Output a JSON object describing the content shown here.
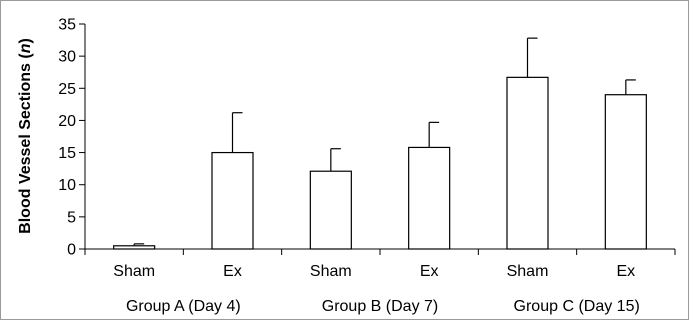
{
  "chart_data": {
    "type": "bar",
    "title": "",
    "xlabel": "",
    "ylabel": "Blood Vessel Sections",
    "ylabel_italic": "n",
    "ylim": [
      0,
      35
    ],
    "yticks": [
      0,
      5,
      10,
      15,
      20,
      25,
      30,
      35
    ],
    "grid": false,
    "legend": "none",
    "categories": [
      "Sham",
      "Ex",
      "Sham",
      "Ex",
      "Sham",
      "Ex"
    ],
    "groups": [
      "Group A (Day 4)",
      "Group B (Day 7)",
      "Group C (Day 15)"
    ],
    "series": [
      {
        "values": [
          0.5,
          15,
          12.1,
          15.8,
          26.7,
          24
        ],
        "error": [
          0.3,
          6.2,
          3.5,
          3.9,
          6.1,
          2.3
        ]
      }
    ],
    "colors": {
      "bar_fill": "#ffffff",
      "bar_stroke": "#000000",
      "axis": "#000000",
      "frame": "#9a9a9a"
    }
  }
}
